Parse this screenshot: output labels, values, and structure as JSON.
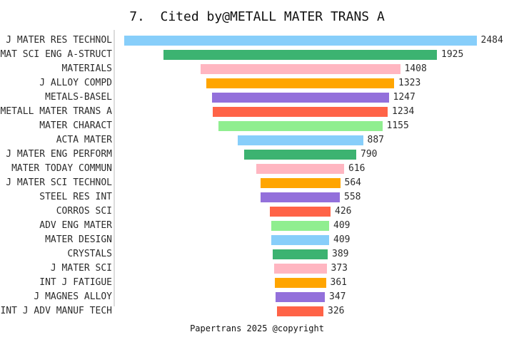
{
  "chart_data": {
    "type": "bar",
    "variant": "centered-funnel",
    "orientation": "horizontal",
    "title": "7.  Cited by@METALL MATER TRANS A",
    "footer": "Papertrans 2025 @copyright",
    "categories": [
      "J MATER RES TECHNOL",
      "MAT SCI ENG A-STRUCT",
      "MATERIALS",
      "J ALLOY COMPD",
      "METALS-BASEL",
      "METALL MATER TRANS A",
      "MATER CHARACT",
      "ACTA MATER",
      "J MATER ENG PERFORM",
      "MATER TODAY COMMUN",
      "J MATER SCI TECHNOL",
      "STEEL RES INT",
      "CORROS SCI",
      "ADV ENG MATER",
      "MATER DESIGN",
      "CRYSTALS",
      "J MATER SCI",
      "INT J FATIGUE",
      "J MAGNES ALLOY",
      "INT J ADV MANUF TECH"
    ],
    "values": [
      2484,
      1925,
      1408,
      1323,
      1247,
      1234,
      1155,
      887,
      790,
      616,
      564,
      558,
      426,
      409,
      409,
      389,
      373,
      361,
      347,
      326
    ],
    "value_labels_shown": true,
    "bar_color_cycle": [
      "#87CEFA",
      "#3CB371",
      "#FFB6C1",
      "#FFA500",
      "#9370DB",
      "#FF6347",
      "#90EE90"
    ],
    "spine_color": "#dcdcdc",
    "xlabel": "",
    "ylabel": "",
    "grid": "off",
    "legend": "none"
  }
}
